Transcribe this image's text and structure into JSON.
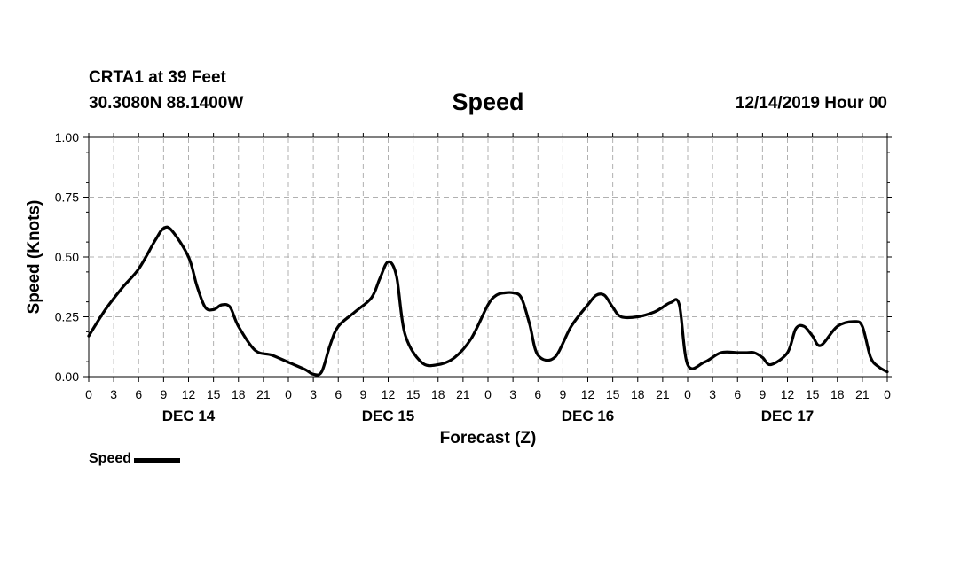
{
  "header": {
    "station": "CRTA1 at 39 Feet",
    "coords": "30.3080N 88.1400W",
    "title": "Speed",
    "datetime": "12/14/2019 Hour 00"
  },
  "legend": {
    "label": "Speed"
  },
  "chart_data": {
    "type": "line",
    "title": "Speed",
    "xlabel": "Forecast (Z)",
    "ylabel": "Speed (Knots)",
    "xlim": [
      0,
      96
    ],
    "ylim": [
      0,
      1
    ],
    "grid": true,
    "legend_position": "bottom-left",
    "y_ticks": [
      "0.00",
      "0.25",
      "0.50",
      "0.75",
      "1.00"
    ],
    "x_tick_labels": [
      "0",
      "3",
      "6",
      "9",
      "12",
      "15",
      "18",
      "21",
      "0",
      "3",
      "6",
      "9",
      "12",
      "15",
      "18",
      "21",
      "0",
      "3",
      "6",
      "9",
      "12",
      "15",
      "18",
      "21",
      "0",
      "3",
      "6",
      "9",
      "12",
      "15",
      "18",
      "21",
      "0"
    ],
    "day_labels": [
      "DEC 14",
      "DEC 15",
      "DEC 16",
      "DEC 17"
    ],
    "series": [
      {
        "name": "Speed",
        "color": "#000000",
        "x": [
          0,
          2,
          4,
          6,
          8,
          9,
          10,
          12,
          13,
          14,
          15,
          16,
          17,
          18,
          20,
          22,
          24,
          26,
          27,
          28,
          29,
          30,
          32,
          34,
          35,
          36,
          37,
          38,
          40,
          42,
          44,
          46,
          48,
          49,
          50,
          51,
          52,
          53,
          54,
          56,
          58,
          60,
          61,
          62,
          63,
          64,
          66,
          68,
          69,
          70,
          71,
          72,
          74,
          76,
          78,
          79,
          80,
          81,
          82,
          84,
          85,
          86,
          87,
          88,
          90,
          92,
          93,
          94,
          95,
          96
        ],
        "values": [
          0.17,
          0.28,
          0.37,
          0.45,
          0.57,
          0.62,
          0.61,
          0.5,
          0.38,
          0.29,
          0.28,
          0.3,
          0.29,
          0.21,
          0.11,
          0.09,
          0.06,
          0.03,
          0.01,
          0.02,
          0.13,
          0.21,
          0.27,
          0.33,
          0.41,
          0.48,
          0.42,
          0.18,
          0.06,
          0.05,
          0.08,
          0.16,
          0.3,
          0.34,
          0.35,
          0.35,
          0.33,
          0.22,
          0.09,
          0.08,
          0.21,
          0.3,
          0.34,
          0.34,
          0.29,
          0.25,
          0.25,
          0.27,
          0.29,
          0.31,
          0.3,
          0.05,
          0.06,
          0.1,
          0.1,
          0.1,
          0.1,
          0.08,
          0.05,
          0.1,
          0.2,
          0.21,
          0.17,
          0.13,
          0.21,
          0.23,
          0.21,
          0.08,
          0.04,
          0.02
        ]
      }
    ]
  }
}
